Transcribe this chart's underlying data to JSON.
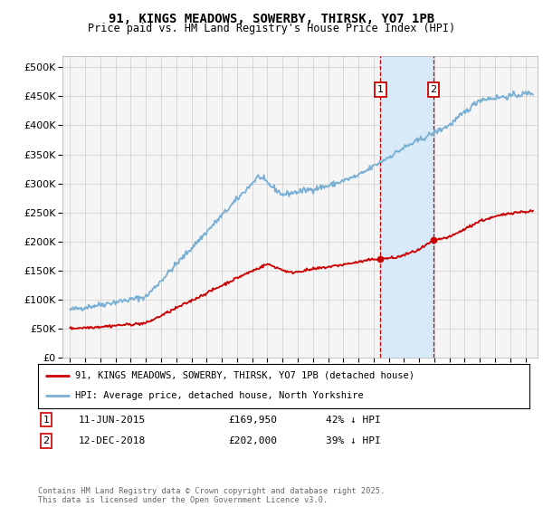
{
  "title": "91, KINGS MEADOWS, SOWERBY, THIRSK, YO7 1PB",
  "subtitle": "Price paid vs. HM Land Registry's House Price Index (HPI)",
  "legend_property": "91, KINGS MEADOWS, SOWERBY, THIRSK, YO7 1PB (detached house)",
  "legend_hpi": "HPI: Average price, detached house, North Yorkshire",
  "annotation1_date": "11-JUN-2015",
  "annotation1_price": "£169,950",
  "annotation1_pct": "42% ↓ HPI",
  "annotation1_year": 2015.45,
  "annotation1_value": 169950,
  "annotation2_date": "12-DEC-2018",
  "annotation2_price": "£202,000",
  "annotation2_pct": "39% ↓ HPI",
  "annotation2_year": 2018.95,
  "annotation2_value": 202000,
  "footer": "Contains HM Land Registry data © Crown copyright and database right 2025.\nThis data is licensed under the Open Government Licence v3.0.",
  "yticks": [
    0,
    50000,
    100000,
    150000,
    200000,
    250000,
    300000,
    350000,
    400000,
    450000,
    500000
  ],
  "ylim": [
    0,
    520000
  ],
  "xlim_start": 1994.5,
  "xlim_end": 2025.8,
  "color_property": "#cc0000",
  "color_hpi": "#7aafd4",
  "color_shade": "#d8eaf7",
  "background_color": "#f5f5f5",
  "grid_color": "#cccccc"
}
